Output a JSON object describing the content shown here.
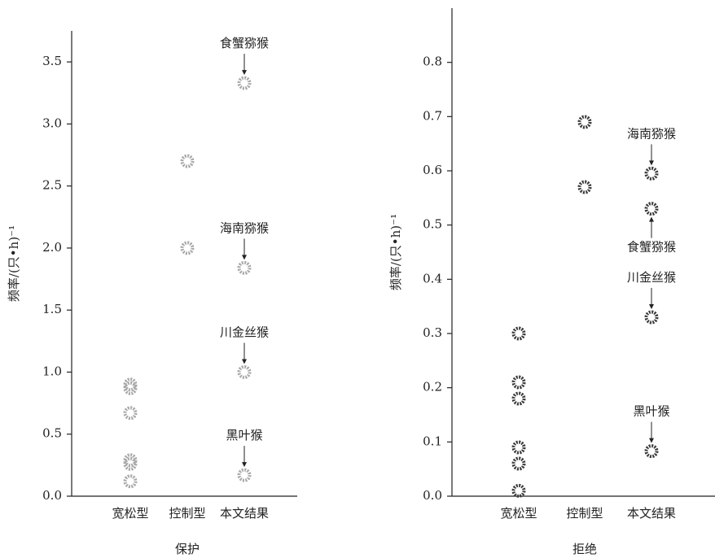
{
  "chart_data": [
    {
      "type": "scatter",
      "x_label": "保护",
      "y_label": "频率/(只•h)⁻¹",
      "categories": [
        "宽松型",
        "控制型",
        "本文结果"
      ],
      "values": [
        [
          0.9,
          0.87,
          0.67,
          0.29,
          0.26,
          0.12
        ],
        [
          2.7,
          2.0
        ],
        [
          3.33,
          1.84,
          1.0,
          0.17
        ]
      ],
      "point_labels": [
        [],
        [],
        [
          "食蟹猕猴",
          "海南猕猴",
          "川金丝猴",
          "黑叶猴"
        ]
      ],
      "color": "#a8a8a8",
      "ylim": [
        0,
        3.75
      ],
      "yticks": [
        {
          "value": 0,
          "label": "0.0"
        },
        0.5,
        {
          "value": 1,
          "label": "1.0"
        },
        1.5,
        {
          "value": 2,
          "label": "2.0"
        },
        2.5,
        {
          "value": 3,
          "label": "3.0"
        },
        3.5
      ]
    },
    {
      "type": "scatter",
      "x_label": "拒绝",
      "y_label": "频率/(只•h)⁻¹",
      "categories": [
        "宽松型",
        "控制型",
        "本文结果"
      ],
      "values": [
        [
          0.3,
          0.21,
          0.18,
          0.09,
          0.06,
          0.01
        ],
        [
          0.69,
          0.57
        ],
        [
          0.595,
          0.53,
          0.33,
          0.083
        ]
      ],
      "point_labels": [
        [],
        [],
        [
          "海南猕猴",
          "食蟹猕猴",
          "川金丝猴",
          "黑叶猴"
        ]
      ],
      "color": "#3a3a3a",
      "ylim": [
        0,
        0.9
      ],
      "yticks": [
        {
          "value": 0,
          "label": "0.0"
        },
        0.1,
        0.2,
        0.3,
        0.4,
        0.5,
        0.6,
        0.7,
        0.8
      ]
    }
  ]
}
